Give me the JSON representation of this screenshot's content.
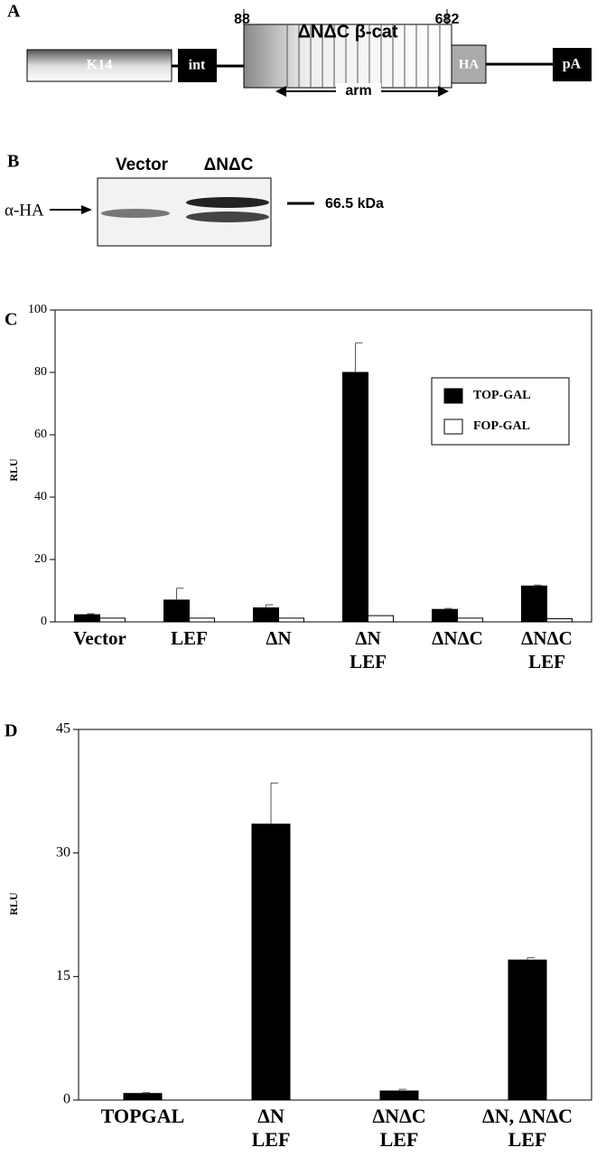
{
  "panel_a": {
    "label": "A",
    "promoter": "K14",
    "intron": "int",
    "start": "88",
    "end": "682",
    "insert": "ΔNΔC β-cat",
    "repeat": "arm",
    "tag": "HA",
    "polya": "pA"
  },
  "panel_b": {
    "label": "B",
    "lanes": [
      "Vector",
      "ΔNΔC"
    ],
    "antibody": "α-HA",
    "marker": "66.5 kDa"
  },
  "chart_data": [
    {
      "type": "bar",
      "label": "C",
      "y_label": "RLU",
      "categories": [
        [
          "Vector"
        ],
        [
          "LEF"
        ],
        [
          "ΔN"
        ],
        [
          "ΔN",
          "LEF"
        ],
        [
          "ΔNΔC"
        ],
        [
          "ΔNΔC",
          "LEF"
        ]
      ],
      "series": [
        {
          "name": "TOP-GAL",
          "color": "#000000",
          "values": [
            2.3,
            7,
            4.5,
            80,
            4,
            11.5
          ],
          "errors": [
            0.3,
            3.8,
            1,
            9.5,
            0.3,
            0.3
          ]
        },
        {
          "name": "FOP-GAL",
          "color": "#ffffff",
          "values": [
            1.2,
            1.2,
            1.2,
            2,
            1.2,
            1
          ]
        }
      ],
      "ylim": [
        0,
        100
      ],
      "yticks": [
        0,
        20,
        40,
        60,
        80,
        100
      ],
      "legend": "upper right"
    },
    {
      "type": "bar",
      "label": "D",
      "y_label": "RLU",
      "categories": [
        [
          "TOPGAL"
        ],
        [
          "ΔN",
          "LEF"
        ],
        [
          "ΔNΔC",
          "LEF"
        ],
        [
          "ΔN, ΔNΔC",
          "LEF"
        ]
      ],
      "series": [
        {
          "color": "#000000",
          "values": [
            0.8,
            33.5,
            1.1,
            17
          ],
          "errors": [
            0.1,
            5,
            0.2,
            0.3
          ]
        }
      ],
      "ylim": [
        0,
        45
      ],
      "yticks": [
        0,
        15,
        30,
        45
      ]
    }
  ]
}
